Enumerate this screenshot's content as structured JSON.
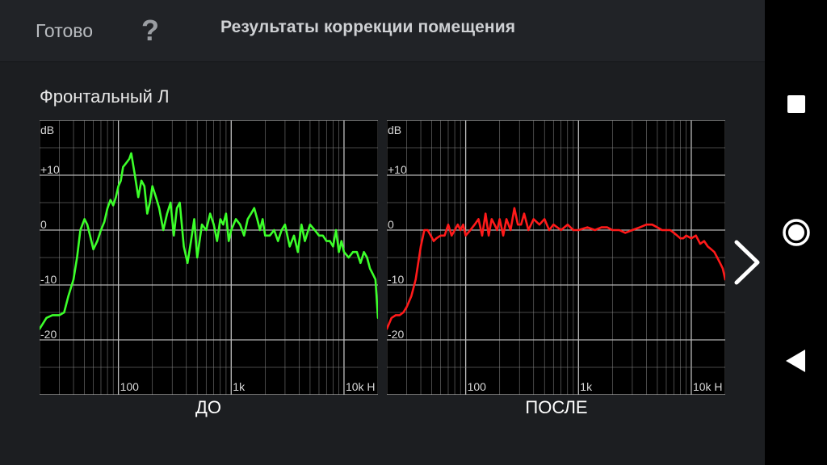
{
  "header": {
    "done_label": "Готово",
    "help_label": "?",
    "title": "Результаты коррекции помещения"
  },
  "speaker": {
    "label": "Фронтальный Л"
  },
  "charts": {
    "before_caption": "ДО",
    "after_caption": "ПОСЛЕ"
  },
  "icons": {
    "next": "chevron-right-icon",
    "recents": "square-icon",
    "home": "circle-icon",
    "back": "triangle-back-icon"
  },
  "colors": {
    "before_series": "#3cff2a",
    "after_series": "#ff1a1a",
    "grid": "#8a8a8a"
  },
  "chart_data": [
    {
      "type": "line",
      "title": "",
      "caption": "ДО",
      "ylabel": "dB",
      "x_scale": "log",
      "xlim": [
        20,
        20000
      ],
      "ylim": [
        -30,
        20
      ],
      "x_tick_labels": [
        "100",
        "1k",
        "10k H"
      ],
      "x_ticks": [
        100,
        1000,
        10000
      ],
      "y_tick_labels": [
        "+10",
        "0",
        "-10",
        "-20"
      ],
      "y_ticks": [
        10,
        0,
        -10,
        -20
      ],
      "grid": true,
      "series": [
        {
          "color": "#3cff2a",
          "x": [
            20,
            23,
            26,
            30,
            33,
            36,
            40,
            43,
            46,
            50,
            53,
            56,
            60,
            65,
            70,
            75,
            80,
            85,
            90,
            95,
            100,
            105,
            110,
            115,
            120,
            125,
            130,
            140,
            150,
            160,
            170,
            180,
            190,
            200,
            215,
            230,
            250,
            270,
            290,
            310,
            330,
            350,
            380,
            410,
            440,
            470,
            500,
            550,
            600,
            650,
            700,
            750,
            800,
            850,
            900,
            950,
            1000,
            1100,
            1200,
            1300,
            1400,
            1500,
            1600,
            1700,
            1800,
            1900,
            2000,
            2200,
            2400,
            2600,
            2800,
            3000,
            3300,
            3600,
            3900,
            4200,
            4500,
            5000,
            5500,
            6000,
            6500,
            7000,
            7500,
            8000,
            8500,
            9000,
            9500,
            10000,
            11000,
            12000,
            13000,
            14000,
            15000,
            16000,
            17000,
            18000,
            19000,
            20000
          ],
          "y": [
            -18,
            -16,
            -15.5,
            -15.5,
            -15,
            -12,
            -9,
            -5,
            0,
            2,
            1,
            -1,
            -3.5,
            -2,
            0,
            1.5,
            4,
            5.5,
            4.5,
            6,
            8,
            9,
            11.5,
            12,
            12.5,
            13,
            14,
            10,
            6,
            9,
            8,
            3,
            5,
            8,
            6,
            4,
            0,
            3,
            5,
            -1,
            4,
            5,
            -3,
            -6,
            -2,
            2,
            -5,
            1,
            0,
            3,
            1,
            -2,
            2,
            1,
            3,
            -2,
            0,
            2,
            1,
            -1,
            2,
            3,
            4,
            2,
            0,
            2,
            -1,
            -1,
            0,
            -2,
            0,
            1,
            -3,
            -1,
            -4,
            1,
            -2,
            1,
            0,
            -1,
            -1,
            -2,
            -2,
            -3,
            0,
            -4,
            -2,
            -4,
            -5,
            -4,
            -4,
            -6,
            -4,
            -5,
            -7,
            -8,
            -9,
            -16
          ]
        }
      ]
    },
    {
      "type": "line",
      "title": "",
      "caption": "ПОСЛЕ",
      "ylabel": "dB",
      "x_scale": "log",
      "xlim": [
        20,
        20000
      ],
      "ylim": [
        -30,
        20
      ],
      "x_tick_labels": [
        "100",
        "1k",
        "10k H"
      ],
      "x_ticks": [
        100,
        1000,
        10000
      ],
      "y_tick_labels": [
        "+10",
        "0",
        "-10",
        "-20"
      ],
      "y_ticks": [
        10,
        0,
        -10,
        -20
      ],
      "grid": true,
      "series": [
        {
          "color": "#ff1a1a",
          "x": [
            20,
            22,
            24,
            26,
            28,
            30,
            33,
            36,
            40,
            43,
            46,
            49,
            52,
            55,
            60,
            65,
            70,
            75,
            80,
            85,
            90,
            95,
            100,
            110,
            120,
            130,
            140,
            150,
            160,
            170,
            180,
            190,
            200,
            215,
            230,
            250,
            270,
            290,
            310,
            330,
            360,
            400,
            450,
            500,
            550,
            600,
            700,
            800,
            900,
            1000,
            1200,
            1400,
            1600,
            1800,
            2000,
            2300,
            2600,
            3000,
            3500,
            4000,
            4500,
            5000,
            5500,
            6000,
            6500,
            7000,
            7500,
            8000,
            8500,
            9000,
            10000,
            11000,
            12000,
            13000,
            14000,
            15000,
            16000,
            17000,
            18000,
            19000,
            20000
          ],
          "y": [
            -18,
            -16,
            -15.5,
            -15.5,
            -15,
            -14,
            -12,
            -9,
            -3,
            0,
            0,
            -1,
            -2,
            -1.5,
            -1,
            -1,
            1,
            -1,
            0,
            1,
            0,
            1,
            -1,
            0,
            1,
            2,
            -1,
            3,
            -1,
            2,
            1,
            0,
            2,
            -1,
            2,
            0,
            4,
            1,
            1,
            3,
            0,
            2,
            1,
            2,
            0,
            1,
            0,
            1,
            0,
            0,
            0.5,
            0,
            0.5,
            0.5,
            0,
            0,
            -0.5,
            0,
            0.5,
            1,
            1,
            0.5,
            0,
            0,
            0,
            -0.5,
            -1,
            -1.5,
            -1.5,
            -1,
            -1.5,
            -1,
            -2.5,
            -2,
            -3,
            -3.5,
            -4,
            -5,
            -6,
            -7,
            -9
          ]
        }
      ]
    }
  ]
}
